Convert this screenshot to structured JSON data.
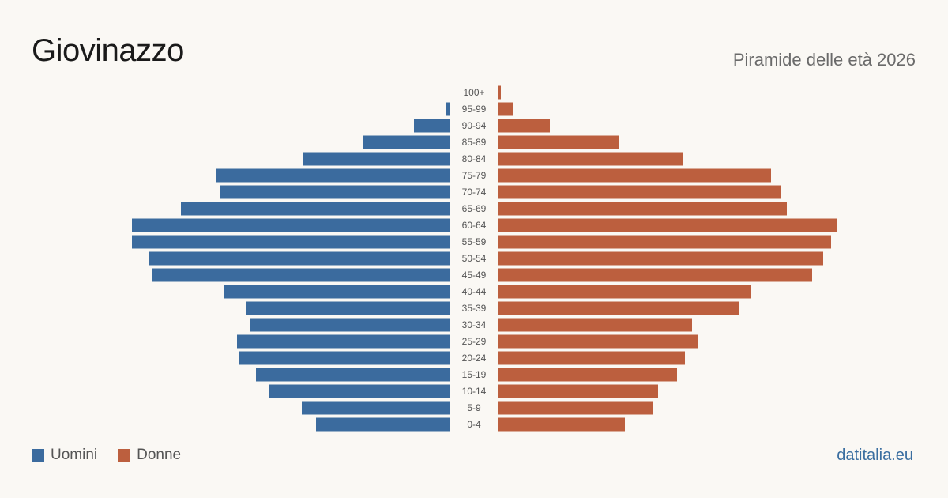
{
  "header": {
    "title": "Giovinazzo",
    "subtitle": "Piramide delle età 2026"
  },
  "colors": {
    "male": "#3b6b9e",
    "female": "#bc5f3e",
    "background": "#faf8f4"
  },
  "legend": {
    "male_label": "Uomini",
    "female_label": "Donne"
  },
  "source": "datitalia.eu",
  "chart_data": {
    "type": "bar",
    "orientation": "horizontal-pyramid",
    "categories": [
      "0-4",
      "5-9",
      "10-14",
      "15-19",
      "20-24",
      "25-29",
      "30-34",
      "35-39",
      "40-44",
      "45-49",
      "50-54",
      "55-59",
      "60-64",
      "65-69",
      "70-74",
      "75-79",
      "80-84",
      "85-89",
      "90-94",
      "95-99",
      "100+"
    ],
    "series": [
      {
        "name": "Uomini",
        "values": [
          170,
          188,
          230,
          246,
          267,
          270,
          254,
          259,
          286,
          377,
          382,
          403,
          403,
          341,
          292,
          297,
          186,
          110,
          46,
          6,
          1
        ]
      },
      {
        "name": "Donne",
        "values": [
          161,
          197,
          203,
          227,
          237,
          253,
          246,
          306,
          321,
          398,
          412,
          422,
          430,
          366,
          358,
          346,
          235,
          154,
          66,
          19,
          4
        ]
      }
    ],
    "legend_position": "bottom-left",
    "grid": false
  }
}
